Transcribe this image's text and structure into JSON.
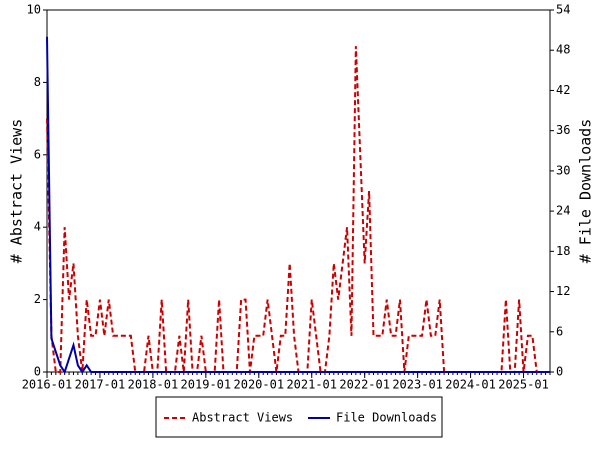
{
  "chart_data": {
    "type": "line",
    "x": [
      "2016-01",
      "2016-02",
      "2016-03",
      "2016-04",
      "2016-05",
      "2016-06",
      "2016-07",
      "2016-08",
      "2016-09",
      "2016-10",
      "2016-11",
      "2016-12",
      "2017-01",
      "2017-02",
      "2017-03",
      "2017-04",
      "2017-05",
      "2017-06",
      "2017-07",
      "2017-08",
      "2017-09",
      "2017-10",
      "2017-11",
      "2017-12",
      "2018-01",
      "2018-02",
      "2018-03",
      "2018-04",
      "2018-05",
      "2018-06",
      "2018-07",
      "2018-08",
      "2018-09",
      "2018-10",
      "2018-11",
      "2018-12",
      "2019-01",
      "2019-02",
      "2019-03",
      "2019-04",
      "2019-05",
      "2019-06",
      "2019-07",
      "2019-08",
      "2019-09",
      "2019-10",
      "2019-11",
      "2019-12",
      "2020-01",
      "2020-02",
      "2020-03",
      "2020-04",
      "2020-05",
      "2020-06",
      "2020-07",
      "2020-08",
      "2020-09",
      "2020-10",
      "2020-11",
      "2020-12",
      "2021-01",
      "2021-02",
      "2021-03",
      "2021-04",
      "2021-05",
      "2021-06",
      "2021-07",
      "2021-08",
      "2021-09",
      "2021-10",
      "2021-11",
      "2021-12",
      "2022-01",
      "2022-02",
      "2022-03",
      "2022-04",
      "2022-05",
      "2022-06",
      "2022-07",
      "2022-08",
      "2022-09",
      "2022-10",
      "2022-11",
      "2022-12",
      "2023-01",
      "2023-02",
      "2023-03",
      "2023-04",
      "2023-05",
      "2023-06",
      "2023-07",
      "2023-08",
      "2023-09",
      "2023-10",
      "2023-11",
      "2023-12",
      "2024-01",
      "2024-02",
      "2024-03",
      "2024-04",
      "2024-05",
      "2024-06",
      "2024-07",
      "2024-08",
      "2024-09",
      "2024-10",
      "2024-11",
      "2024-12",
      "2025-01",
      "2025-02",
      "2025-03",
      "2025-04",
      "2025-05",
      "2025-06",
      "2025-07"
    ],
    "xticks": [
      "2016-01",
      "2017-01",
      "2018-01",
      "2019-01",
      "2020-01",
      "2021-01",
      "2022-01",
      "2023-01",
      "2024-01",
      "2025-01"
    ],
    "ylabel": "# Abstract Views",
    "y2label": "# File Downloads",
    "ylim": [
      0,
      10
    ],
    "yticks": [
      0,
      2,
      4,
      6,
      8,
      10
    ],
    "y2lim": [
      0,
      54
    ],
    "y2ticks": [
      0,
      6,
      12,
      18,
      24,
      30,
      36,
      42,
      48,
      54
    ],
    "series": [
      {
        "name": "Abstract Views",
        "color": "#cc0000",
        "dashed": true,
        "values": [
          7,
          1,
          0,
          0,
          4,
          2,
          3,
          1,
          0,
          2,
          1,
          1,
          2,
          1,
          2,
          1,
          1,
          1,
          1,
          1,
          0,
          0,
          0,
          1,
          0,
          0,
          2,
          0,
          0,
          0,
          1,
          0,
          2,
          0,
          0,
          1,
          0,
          0,
          0,
          2,
          0,
          0,
          0,
          0,
          2,
          2,
          0,
          1,
          1,
          1,
          2,
          1,
          0,
          1,
          1,
          3,
          1,
          0,
          0,
          0,
          2,
          1,
          0,
          0,
          1,
          3,
          2,
          3,
          4,
          1,
          9,
          6,
          3,
          5,
          1,
          1,
          1,
          2,
          1,
          1,
          2,
          0,
          1,
          1,
          1,
          1,
          2,
          1,
          1,
          2,
          0,
          0,
          0,
          0,
          0,
          0,
          0,
          0,
          0,
          0,
          0,
          0,
          0,
          0,
          2,
          0,
          0,
          2,
          0,
          1,
          1,
          0,
          0,
          0,
          0
        ]
      },
      {
        "name": "File Downloads",
        "color": "#0000aa",
        "dashed": false,
        "axis": "y2",
        "values": [
          50,
          5,
          3,
          1,
          0,
          2,
          4,
          1,
          0,
          1,
          0,
          0,
          0,
          0,
          0,
          0,
          0,
          0,
          0,
          0,
          0,
          0,
          0,
          0,
          0,
          0,
          0,
          0,
          0,
          0,
          0,
          0,
          0,
          0,
          0,
          0,
          0,
          0,
          0,
          0,
          0,
          0,
          0,
          0,
          0,
          0,
          0,
          0,
          0,
          0,
          0,
          0,
          0,
          0,
          0,
          0,
          0,
          0,
          0,
          0,
          0,
          0,
          0,
          0,
          0,
          0,
          0,
          0,
          0,
          0,
          0,
          0,
          0,
          0,
          0,
          0,
          0,
          0,
          0,
          0,
          0,
          0,
          0,
          0,
          0,
          0,
          0,
          0,
          0,
          0,
          0,
          0,
          0,
          0,
          0,
          0,
          0,
          0,
          0,
          0,
          0,
          0,
          0,
          0,
          0,
          0,
          0,
          0,
          0,
          0,
          0,
          0,
          0,
          0,
          0
        ]
      }
    ]
  }
}
